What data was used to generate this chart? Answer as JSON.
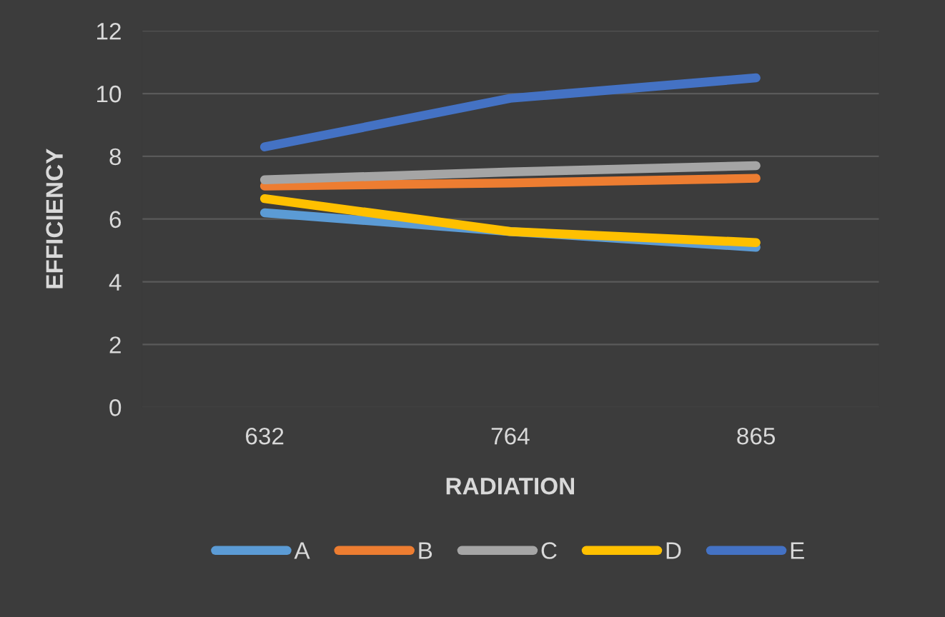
{
  "chart_data": {
    "type": "line",
    "xlabel": "RADIATION",
    "ylabel": "EFFICIENCY",
    "categories": [
      "632",
      "764",
      "865"
    ],
    "series": [
      {
        "name": "A",
        "color": "#5b9bd5",
        "values": [
          6.2,
          5.6,
          5.1
        ]
      },
      {
        "name": "B",
        "color": "#ed7d31",
        "values": [
          7.05,
          7.15,
          7.3
        ]
      },
      {
        "name": "C",
        "color": "#a5a5a5",
        "values": [
          7.25,
          7.5,
          7.7
        ]
      },
      {
        "name": "D",
        "color": "#ffc000",
        "values": [
          6.65,
          5.6,
          5.25
        ]
      },
      {
        "name": "E",
        "color": "#4472c4",
        "values": [
          8.3,
          9.85,
          10.5
        ]
      }
    ],
    "ylim": [
      0,
      12
    ],
    "yticks": [
      0,
      2,
      4,
      6,
      8,
      10,
      12
    ],
    "grid": "y",
    "legend": "bottom",
    "marker": "none",
    "line_style": "solid"
  }
}
